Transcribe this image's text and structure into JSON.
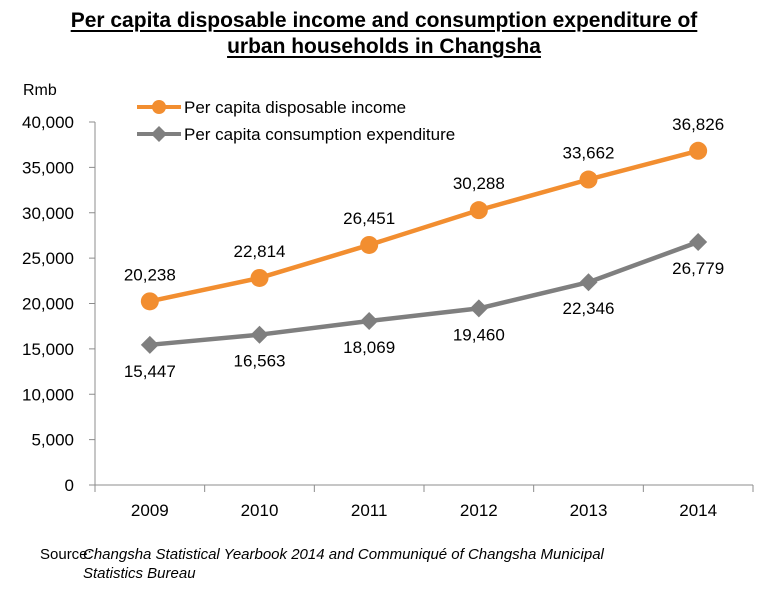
{
  "chart_data": {
    "type": "line",
    "title_line1": "Per capita disposable income and consumption expenditure of",
    "title_line2": "urban households in Changsha",
    "ylabel": "Rmb",
    "xlabel": "",
    "categories": [
      "2009",
      "2010",
      "2011",
      "2012",
      "2013",
      "2014"
    ],
    "ylim": [
      0,
      40000
    ],
    "ytick_values": [
      0,
      5000,
      10000,
      15000,
      20000,
      25000,
      30000,
      35000,
      40000
    ],
    "ytick_labels": [
      "0",
      "5,000",
      "10,000",
      "15,000",
      "20,000",
      "25,000",
      "30,000",
      "35,000",
      "40,000"
    ],
    "legend_position": "top-left",
    "series": [
      {
        "name": "Per capita disposable income",
        "color": "#F28E30",
        "marker": "circle",
        "values": [
          20238,
          22814,
          26451,
          30288,
          33662,
          36826
        ],
        "labels": [
          "20,238",
          "22,814",
          "26,451",
          "30,288",
          "33,662",
          "36,826"
        ],
        "label_placement": "above"
      },
      {
        "name": "Per capita consumption expenditure",
        "color": "#7F7F7F",
        "marker": "diamond",
        "values": [
          15447,
          16563,
          18069,
          19460,
          22346,
          26779
        ],
        "labels": [
          "15,447",
          "16,563",
          "18,069",
          "19,460",
          "22,346",
          "26,779"
        ],
        "label_placement": "below"
      }
    ]
  },
  "source": {
    "label": "Source:",
    "text_line1": "Changsha Statistical Yearbook 2014 and Communiqué of Changsha Municipal",
    "text_line2": "Statistics Bureau"
  }
}
